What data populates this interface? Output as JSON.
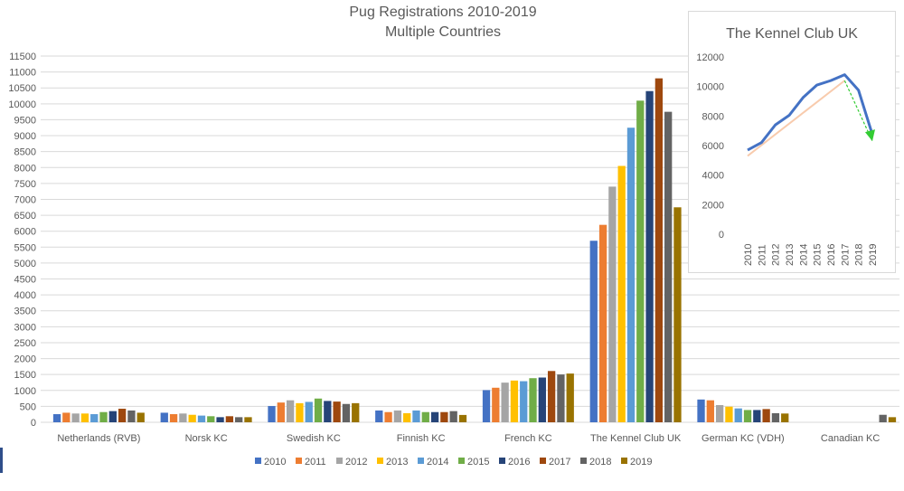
{
  "chart_data": [
    {
      "type": "bar",
      "title": "Pug Registrations 2010-2019",
      "subtitle": "Multiple Countries",
      "categories": [
        "Netherlands (RVB)",
        "Norsk KC",
        "Swedish KC",
        "Finnish KC",
        "French KC",
        "The Kennel Club UK",
        "German KC (VDH)",
        "Canadian KC"
      ],
      "ylim": [
        0,
        11500
      ],
      "ytick_step": 500,
      "grid": true,
      "legend_position": "bottom",
      "series": [
        {
          "name": "2010",
          "color": "#4472c4",
          "values": [
            255,
            300,
            510,
            370,
            1010,
            5700,
            715,
            null
          ]
        },
        {
          "name": "2011",
          "color": "#ed7d31",
          "values": [
            300,
            255,
            620,
            320,
            1085,
            6200,
            690,
            null
          ]
        },
        {
          "name": "2012",
          "color": "#a5a5a5",
          "values": [
            275,
            275,
            690,
            370,
            1245,
            7400,
            540,
            null
          ]
        },
        {
          "name": "2013",
          "color": "#ffc000",
          "values": [
            275,
            235,
            600,
            285,
            1310,
            8050,
            490,
            null
          ]
        },
        {
          "name": "2014",
          "color": "#5b9bd5",
          "values": [
            255,
            210,
            640,
            370,
            1290,
            9250,
            435,
            null
          ]
        },
        {
          "name": "2015",
          "color": "#70ad47",
          "values": [
            320,
            190,
            745,
            320,
            1385,
            10100,
            385,
            null
          ]
        },
        {
          "name": "2016",
          "color": "#264478",
          "values": [
            350,
            160,
            670,
            320,
            1405,
            10400,
            385,
            null
          ]
        },
        {
          "name": "2017",
          "color": "#9e480e",
          "values": [
            425,
            190,
            650,
            320,
            1610,
            10800,
            415,
            null
          ]
        },
        {
          "name": "2018",
          "color": "#636363",
          "values": [
            370,
            160,
            575,
            350,
            1500,
            9750,
            285,
            235
          ]
        },
        {
          "name": "2019",
          "color": "#997300",
          "values": [
            300,
            160,
            600,
            230,
            1530,
            6750,
            275,
            160
          ]
        }
      ]
    },
    {
      "type": "line",
      "title": "The Kennel Club UK",
      "x": [
        "2010",
        "2011",
        "2012",
        "2013",
        "2014",
        "2015",
        "2016",
        "2017",
        "2018",
        "2019"
      ],
      "values": [
        5700,
        6200,
        7400,
        8050,
        9250,
        10100,
        10400,
        10800,
        9750,
        6750
      ],
      "ylim": [
        0,
        12000
      ],
      "ytick_step": 2000,
      "line_color": "#4472c4",
      "trend_color": "#f8cbad",
      "arrow_color": "#33cc33",
      "trend_values": {
        "from": [
          "2010",
          5300
        ],
        "to": [
          "2017",
          10400
        ]
      },
      "arrow_values": {
        "from": [
          "2017",
          10400
        ],
        "to": [
          "2019",
          6300
        ]
      }
    }
  ]
}
